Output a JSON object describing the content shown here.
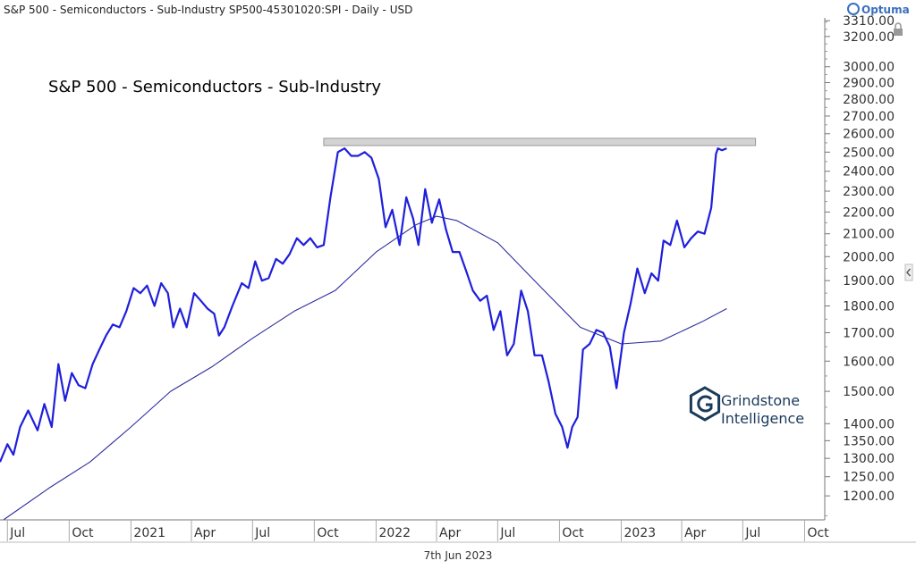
{
  "header": {
    "title": "S&P 500 - Semiconductors - Sub-Industry   SP500-45301020:SPI - Daily - USD",
    "brand": "Optuma"
  },
  "footer": {
    "date_label": "7th Jun 2023"
  },
  "watermark": {
    "line1": "Grindstone",
    "line2": "Intelligence"
  },
  "colors": {
    "price_line": "#1f1fdc",
    "ma_line": "#2d2d9e",
    "resistance_band": "#d3d3d3",
    "axis_text": "#333333",
    "watermark": "#1b3a5b",
    "brand": "#3a6fbf"
  },
  "icons": {
    "lock": "lock-icon",
    "nav": "chevron-left-icon"
  },
  "chart_data": {
    "type": "line",
    "title": "S&P 500 - Semiconductors - Sub-Industry",
    "y_scale": "log",
    "ylim": [
      1140,
      3330
    ],
    "xlim": [
      "2020-06-20",
      "2023-10-31"
    ],
    "y_ticks": [
      "1200.00",
      "1250.00",
      "1300.00",
      "1350.00",
      "1400.00",
      "1500.00",
      "1600.00",
      "1700.00",
      "1800.00",
      "1900.00",
      "2000.00",
      "2100.00",
      "2200.00",
      "2300.00",
      "2400.00",
      "2500.00",
      "2600.00",
      "2700.00",
      "2800.00",
      "2900.00",
      "3000.00",
      "3200.00",
      "3310.00"
    ],
    "x_ticks": [
      {
        "date": "2020-07-01",
        "label": "Jul"
      },
      {
        "date": "2020-10-01",
        "label": "Oct"
      },
      {
        "date": "2021-01-01",
        "label": "2021"
      },
      {
        "date": "2021-04-01",
        "label": "Apr"
      },
      {
        "date": "2021-07-01",
        "label": "Jul"
      },
      {
        "date": "2021-10-01",
        "label": "Oct"
      },
      {
        "date": "2022-01-01",
        "label": "2022"
      },
      {
        "date": "2022-04-01",
        "label": "Apr"
      },
      {
        "date": "2022-07-01",
        "label": "Jul"
      },
      {
        "date": "2022-10-01",
        "label": "Oct"
      },
      {
        "date": "2023-01-01",
        "label": "2023"
      },
      {
        "date": "2023-04-01",
        "label": "Apr"
      },
      {
        "date": "2023-07-01",
        "label": "Jul"
      },
      {
        "date": "2023-10-01",
        "label": "Oct"
      }
    ],
    "annotations": [
      {
        "type": "resistance_band",
        "x_start": "2021-10-15",
        "x_end": "2023-07-20",
        "y_low": 2535,
        "y_high": 2575
      }
    ],
    "series": [
      {
        "type": "price",
        "x": [
          "2020-06-20",
          "2020-07-01",
          "2020-07-10",
          "2020-07-20",
          "2020-08-01",
          "2020-08-15",
          "2020-08-25",
          "2020-09-05",
          "2020-09-15",
          "2020-09-25",
          "2020-10-05",
          "2020-10-15",
          "2020-10-25",
          "2020-11-05",
          "2020-11-15",
          "2020-11-25",
          "2020-12-05",
          "2020-12-15",
          "2020-12-25",
          "2021-01-05",
          "2021-01-15",
          "2021-01-25",
          "2021-02-05",
          "2021-02-15",
          "2021-02-25",
          "2021-03-05",
          "2021-03-15",
          "2021-03-25",
          "2021-04-05",
          "2021-04-15",
          "2021-04-25",
          "2021-05-05",
          "2021-05-12",
          "2021-05-20",
          "2021-06-01",
          "2021-06-15",
          "2021-06-25",
          "2021-07-05",
          "2021-07-15",
          "2021-07-25",
          "2021-08-05",
          "2021-08-15",
          "2021-08-25",
          "2021-09-05",
          "2021-09-15",
          "2021-09-25",
          "2021-10-05",
          "2021-10-15",
          "2021-10-25",
          "2021-11-05",
          "2021-11-15",
          "2021-11-25",
          "2021-12-05",
          "2021-12-15",
          "2021-12-25",
          "2022-01-05",
          "2022-01-15",
          "2022-01-25",
          "2022-02-05",
          "2022-02-15",
          "2022-02-25",
          "2022-03-05",
          "2022-03-15",
          "2022-03-25",
          "2022-04-05",
          "2022-04-15",
          "2022-04-25",
          "2022-05-05",
          "2022-05-15",
          "2022-05-25",
          "2022-06-05",
          "2022-06-15",
          "2022-06-25",
          "2022-07-05",
          "2022-07-15",
          "2022-07-25",
          "2022-08-05",
          "2022-08-15",
          "2022-08-25",
          "2022-09-05",
          "2022-09-15",
          "2022-09-25",
          "2022-10-05",
          "2022-10-13",
          "2022-10-20",
          "2022-10-28",
          "2022-11-05",
          "2022-11-15",
          "2022-11-25",
          "2022-12-05",
          "2022-12-15",
          "2022-12-25",
          "2023-01-05",
          "2023-01-15",
          "2023-01-25",
          "2023-02-05",
          "2023-02-15",
          "2023-02-25",
          "2023-03-05",
          "2023-03-15",
          "2023-03-25",
          "2023-04-05",
          "2023-04-15",
          "2023-04-25",
          "2023-05-05",
          "2023-05-15",
          "2023-05-22",
          "2023-05-25",
          "2023-05-31",
          "2023-06-07"
        ],
        "values": [
          1290,
          1340,
          1310,
          1390,
          1440,
          1380,
          1460,
          1390,
          1590,
          1470,
          1560,
          1520,
          1510,
          1590,
          1640,
          1690,
          1730,
          1720,
          1780,
          1870,
          1850,
          1880,
          1800,
          1890,
          1850,
          1720,
          1790,
          1720,
          1850,
          1820,
          1790,
          1770,
          1690,
          1720,
          1800,
          1890,
          1870,
          1980,
          1900,
          1910,
          1990,
          1970,
          2010,
          2080,
          2050,
          2080,
          2040,
          2050,
          2270,
          2500,
          2520,
          2480,
          2480,
          2500,
          2470,
          2360,
          2130,
          2210,
          2050,
          2270,
          2170,
          2050,
          2310,
          2150,
          2260,
          2120,
          2020,
          2020,
          1940,
          1860,
          1820,
          1840,
          1710,
          1780,
          1620,
          1660,
          1860,
          1780,
          1620,
          1620,
          1530,
          1430,
          1390,
          1330,
          1390,
          1420,
          1640,
          1660,
          1710,
          1700,
          1650,
          1510,
          1700,
          1810,
          1950,
          1850,
          1930,
          1900,
          2070,
          2050,
          2160,
          2040,
          2080,
          2110,
          2100,
          2220,
          2490,
          2520,
          2510,
          2520
        ]
      },
      {
        "type": "moving_average",
        "x": [
          "2020-06-25",
          "2020-09-01",
          "2020-11-01",
          "2021-01-01",
          "2021-03-01",
          "2021-05-01",
          "2021-07-01",
          "2021-09-01",
          "2021-11-01",
          "2022-01-01",
          "2022-03-01",
          "2022-04-01",
          "2022-05-01",
          "2022-07-01",
          "2022-09-01",
          "2022-11-01",
          "2023-01-01",
          "2023-03-01",
          "2023-05-01",
          "2023-06-07"
        ],
        "values": [
          1140,
          1220,
          1290,
          1390,
          1500,
          1580,
          1680,
          1780,
          1860,
          2020,
          2140,
          2180,
          2160,
          2060,
          1880,
          1720,
          1660,
          1670,
          1740,
          1790
        ]
      }
    ]
  }
}
